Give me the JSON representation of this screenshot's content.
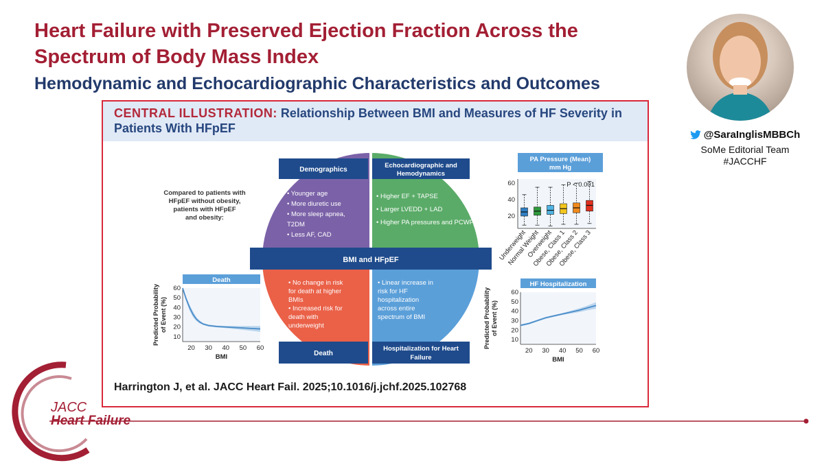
{
  "slide": {
    "title": "Heart Failure with Preserved Ejection Fraction Across the Spectrum of Body Mass Index",
    "subtitle": "Hemodynamic and Echocardiographic Characteristics and Outcomes"
  },
  "author": {
    "handle": "@SaraInglisMBBCh",
    "team": "SoMe Editorial Team",
    "hashtag": "#JACCHF"
  },
  "illustration": {
    "label": "CENTRAL ILLUSTRATION:",
    "title": "Relationship Between BMI and Measures of HF Severity in Patients With HFpEF",
    "intro": [
      "Compared to patients with",
      "HFpEF without obesity,",
      "patients with HFpEF",
      "and obesity:"
    ],
    "center_label": "BMI and HFpEF",
    "quadrants": {
      "demographics": {
        "heading": "Demographics",
        "color": "#7b62a8",
        "bullets": [
          "• Younger age",
          "• More diuretic use",
          "• More sleep apnea,",
          "   T2DM",
          "• Less AF, CAD"
        ]
      },
      "echo": {
        "heading": [
          "Echocardiographic and",
          "Hemodynamics"
        ],
        "color": "#5aab68",
        "bullets": [
          "• Higher EF + TAPSE",
          "• Larger LVEDD + LAD",
          "• Higher PA pressures and PCWP"
        ]
      },
      "death": {
        "heading": "Death",
        "color": "#ea6148",
        "bullets": [
          "• No change in risk",
          "  for death at higher",
          "  BMIs",
          "• Increased risk for",
          "  death with",
          "  underweight"
        ]
      },
      "hosp": {
        "heading": [
          "Hospitalization for Heart",
          "Failure"
        ],
        "color": "#5b9fd9",
        "bullets": [
          "• Linear increase in",
          "  risk for HF",
          "  hospitalization",
          "  across entire",
          "  spectrum of BMI"
        ]
      }
    },
    "citation": "Harrington J, et al. JACC Heart Fail. 2025;10.1016/j.jchf.2025.102768"
  },
  "colors": {
    "brand_red": "#a31f34",
    "navy": "#223a6b",
    "box_navy": "#1f4b8c",
    "panel_blue": "#5b9fd9"
  },
  "logo": {
    "line1": "JACC",
    "line2": "Heart Failure"
  },
  "chart_data": [
    {
      "type": "line",
      "title": "Death",
      "xlabel": "BMI",
      "ylabel": "Predicted Probability of Event (%)",
      "xlim": [
        15,
        60
      ],
      "ylim": [
        5,
        60
      ],
      "xticks": [
        "20",
        "30",
        "40",
        "50",
        "60"
      ],
      "yticks": [
        "10",
        "20",
        "30",
        "40",
        "50",
        "60"
      ],
      "series": [
        {
          "x": [
            15,
            17,
            19,
            21,
            23,
            25,
            27,
            30,
            35,
            40,
            45,
            50,
            55,
            60
          ],
          "y": [
            60,
            49,
            40,
            33,
            28,
            25,
            23,
            21.5,
            20.5,
            20,
            19.5,
            19,
            18.5,
            18
          ],
          "band": [
            1,
            2,
            3,
            3,
            2,
            1.5,
            1,
            1,
            1,
            1.2,
            1.5,
            2,
            2.5,
            3
          ]
        }
      ]
    },
    {
      "type": "line",
      "title": "HF Hospitalization",
      "xlabel": "BMI",
      "ylabel": "Predicted Probability of Event (%)",
      "xlim": [
        15,
        60
      ],
      "ylim": [
        5,
        60
      ],
      "xticks": [
        "20",
        "30",
        "40",
        "50",
        "60"
      ],
      "yticks": [
        "10",
        "20",
        "30",
        "40",
        "50",
        "60"
      ],
      "series": [
        {
          "x": [
            15,
            20,
            25,
            30,
            35,
            40,
            45,
            50,
            55,
            60
          ],
          "y": [
            25,
            27,
            30,
            33,
            35,
            37,
            39,
            41,
            43.5,
            46
          ],
          "band": [
            1,
            1,
            1,
            1,
            1,
            1,
            1.5,
            2,
            2.5,
            3.5
          ]
        }
      ]
    },
    {
      "type": "box",
      "title": "PA Pressure (Mean) mm Hg",
      "annotation": "P < 0.001",
      "ylim": [
        5,
        65
      ],
      "yticks": [
        "20",
        "40",
        "60"
      ],
      "categories": [
        "Underweight",
        "Normal Weight",
        "Overweight",
        "Obese, Class 1",
        "Obese, Class 2",
        "Obese, Class 3"
      ],
      "colors": [
        "#2f7fc4",
        "#2e9a3c",
        "#4fb3e3",
        "#f2c51c",
        "#f08a1c",
        "#e0301e"
      ],
      "boxes": [
        {
          "min": 9,
          "q1": 20,
          "median": 25,
          "q3": 30,
          "max": 46
        },
        {
          "min": 9,
          "q1": 21,
          "median": 26,
          "q3": 31,
          "max": 55
        },
        {
          "min": 8,
          "q1": 22,
          "median": 27,
          "q3": 33,
          "max": 55
        },
        {
          "min": 10,
          "q1": 23,
          "median": 29,
          "q3": 35,
          "max": 58
        },
        {
          "min": 10,
          "q1": 24,
          "median": 30,
          "q3": 36,
          "max": 60
        },
        {
          "min": 11,
          "q1": 26,
          "median": 33,
          "q3": 39,
          "max": 62
        }
      ]
    }
  ]
}
